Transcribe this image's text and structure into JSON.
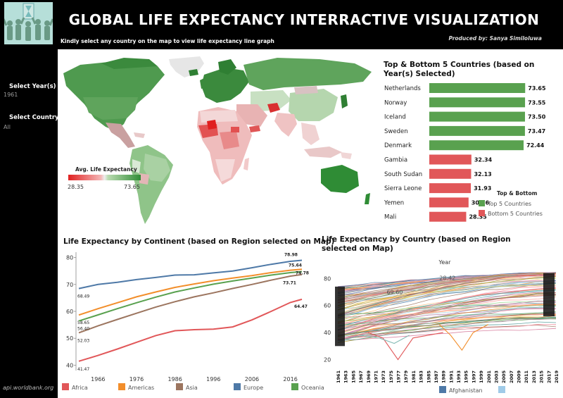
{
  "header": {
    "title": "GLOBAL LIFE EXPECTANCY INTERRACTIVE VISUALIZATION",
    "subtitle": "Kindly select any country on the map to view life expectancy line graph",
    "producer": "Produced by: Sanya Similoluwa",
    "logo_icon": "people-crowd-logo"
  },
  "sidebar": {
    "year_label": "Select Year(s)",
    "year_value": "1961",
    "country_label": "Select Country",
    "country_value": "All",
    "source": "api.worldbank.org"
  },
  "map": {
    "legend_title": "Avg. Life Expectancy",
    "legend_min": "28.35",
    "legend_max": "73.65",
    "colors": {
      "low": "#e02020",
      "mid": "#eeeeee",
      "high": "#2f8c35"
    }
  },
  "chart_data": [
    {
      "type": "bar",
      "title": "Top & Bottom 5 Countries (based on Year(s) Selected)",
      "orientation": "horizontal",
      "categories": [
        "Netherlands",
        "Norway",
        "Iceland",
        "Sweden",
        "Denmark",
        "Gambia",
        "South Sudan",
        "Sierra Leone",
        "Yemen",
        "Mali"
      ],
      "values": [
        73.65,
        73.55,
        73.5,
        73.47,
        72.44,
        32.34,
        32.13,
        31.93,
        30.16,
        28.35
      ],
      "value_labels": [
        "73.65",
        "73.55",
        "73.50",
        "73.47",
        "72.44",
        "32.34",
        "32.13",
        "31.93",
        "30.16",
        "28.35"
      ],
      "groups": [
        "Top 5 Countries",
        "Top 5 Countries",
        "Top 5 Countries",
        "Top 5 Countries",
        "Top 5 Countries",
        "Bottom 5 Countries",
        "Bottom 5 Countries",
        "Bottom 5 Countries",
        "Bottom 5 Countries",
        "Bottom 5 Countries"
      ],
      "legend_title": "Top & Bottom",
      "legend": [
        {
          "name": "Top 5 Countries",
          "color": "#59a14f"
        },
        {
          "name": "Bottom 5 Countries",
          "color": "#e15759"
        }
      ],
      "xlim": [
        0,
        80
      ]
    },
    {
      "type": "line",
      "title": "Life Expectancy by Continent (based on Region selected on Map)",
      "x": [
        1961,
        1966,
        1971,
        1976,
        1981,
        1986,
        1991,
        1996,
        2001,
        2006,
        2011,
        2016,
        2019
      ],
      "x_ticks": [
        "1966",
        "1976",
        "1986",
        "1996",
        "2006",
        "2016"
      ],
      "y_ticks": [
        "40",
        "50",
        "60",
        "70",
        "80"
      ],
      "ylim": [
        38,
        82
      ],
      "series": [
        {
          "name": "Africa",
          "color": "#e15759",
          "values": [
            41.47,
            43.6,
            46.0,
            48.5,
            51.0,
            52.8,
            53.2,
            53.4,
            54.2,
            56.8,
            60.0,
            63.3,
            64.47
          ],
          "start_label": "41.47",
          "end_label": "64.47"
        },
        {
          "name": "Americas",
          "color": "#f28e2b",
          "values": [
            58.65,
            61.0,
            63.2,
            65.4,
            67.2,
            68.9,
            70.2,
            71.4,
            72.4,
            73.3,
            74.4,
            75.3,
            75.64
          ],
          "start_label": "58.65",
          "end_label": "75.64"
        },
        {
          "name": "Asia",
          "color": "#9c755f",
          "values": [
            52.03,
            54.6,
            57.0,
            59.3,
            61.6,
            63.6,
            65.4,
            66.9,
            68.5,
            70.0,
            71.6,
            73.1,
            73.71
          ],
          "start_label": "52.03",
          "end_label": "73.71"
        },
        {
          "name": "Europe",
          "color": "#4e79a7",
          "values": [
            68.49,
            70.0,
            70.8,
            71.8,
            72.6,
            73.5,
            73.6,
            74.3,
            75.0,
            76.2,
            77.5,
            78.6,
            78.98
          ],
          "start_label": "68.49",
          "end_label": "78.98"
        },
        {
          "name": "Oceania",
          "color": "#59a14f",
          "values": [
            56.4,
            58.7,
            61.0,
            63.2,
            65.3,
            67.2,
            68.7,
            70.1,
            71.3,
            72.4,
            73.5,
            74.4,
            74.78
          ],
          "start_label": "56.40",
          "end_label": "74.78"
        }
      ]
    },
    {
      "type": "line",
      "title": "Life Expectancy by Country (based on Region selected on Map)",
      "xlabel": "Year",
      "x_ticks": [
        "1961",
        "1963",
        "1965",
        "1967",
        "1969",
        "1971",
        "1973",
        "1975",
        "1977",
        "1979",
        "1981",
        "1983",
        "1985",
        "1987",
        "1989",
        "1991",
        "1993",
        "1995",
        "1997",
        "1999",
        "2001",
        "2003",
        "2005",
        "2007",
        "2009",
        "2011",
        "2013",
        "2015",
        "2017",
        "2019"
      ],
      "y_ticks": [
        "20",
        "40",
        "60",
        "80"
      ],
      "ylim": [
        14,
        88
      ],
      "annotations": [
        "69.60",
        "28.42"
      ],
      "series": [
        {
          "name": "Afghanistan",
          "color": "#4e79a7"
        },
        {
          "name": "",
          "color": "#a0cbe8"
        }
      ],
      "note": "one line per country, approximately 260 countries"
    }
  ]
}
